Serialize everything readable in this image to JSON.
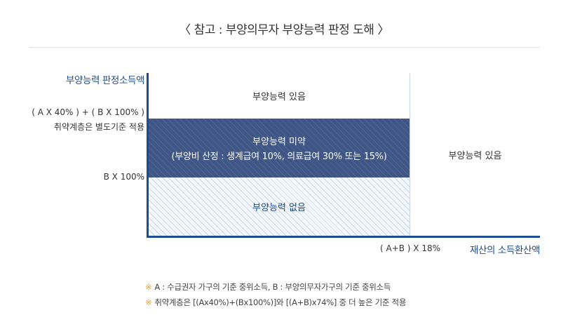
{
  "title": "〈 참고 : 부양의무자 부양능력 판정 도해 〉",
  "y_axis": {
    "title": "부양능력 판정소득액",
    "label_upper_line1": "( A X 40% ) + ( B X 100% )",
    "label_upper_line2": "취약계층은 별도기준 적용",
    "label_lower": "B X 100%"
  },
  "x_axis": {
    "title": "재산의 소득환산액",
    "tick": "( A+B ) X 18%"
  },
  "zones": {
    "capable_top": "부양능력 있음",
    "insufficient_line1": "부양능력 미약",
    "insufficient_line2": "(부양비 산정 : 생계급여 10%, 의료급여 30% 또는 15%)",
    "none": "부양능력 없음",
    "capable_right": "부양능력 있음"
  },
  "notes": [
    {
      "mark": "※",
      "text": "A : 수급권자 가구의 기준 중위소득, B : 부양의무자가구의 기준 중위소득"
    },
    {
      "mark": "※",
      "text": "취약계층은 [(Ax40%)+(Bx100%)]와 [(A+B)x74%] 중 더 높은 기준 적용"
    }
  ],
  "colors": {
    "axis": "#1d4d8f",
    "insufficient_fill": "#3e5585",
    "none_fill": "#f3f7fb",
    "note_mark": "#e8a23a"
  }
}
